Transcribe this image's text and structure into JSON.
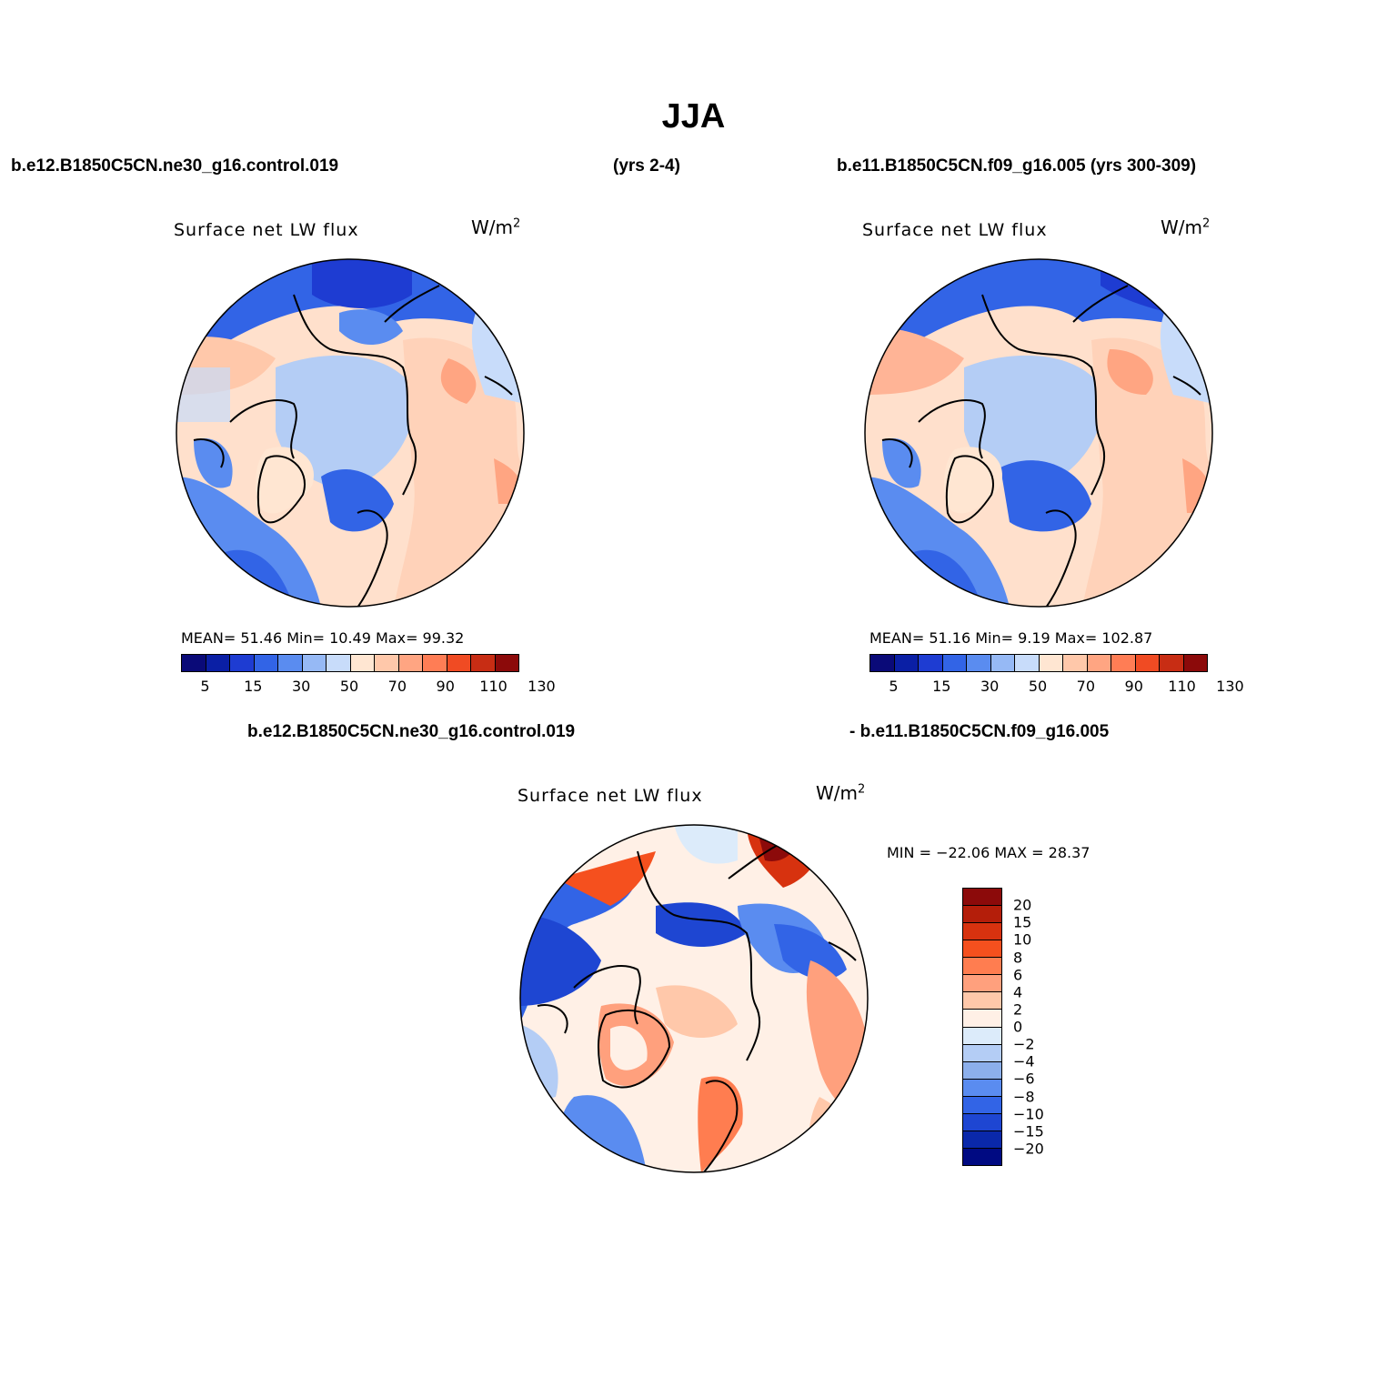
{
  "title": "JJA",
  "header": {
    "left_case": "b.e12.B1850C5CN.ne30_g16.control.019",
    "left_years": "(yrs 2-4)",
    "right_case": "b.e11.B1850C5CN.f09_g16.005 (yrs 300-309)"
  },
  "panels": [
    {
      "label": "Surface net LW flux",
      "units": "W/m",
      "units_sup": "2",
      "stats": "MEAN=   51.46   Min=    10.49    Max=    99.32",
      "colorbar_ticks": [
        "5",
        "15",
        "30",
        "50",
        "70",
        "90",
        "110",
        "130"
      ]
    },
    {
      "label": "Surface net LW flux",
      "units": "W/m",
      "units_sup": "2",
      "stats": "MEAN=   51.16   Min=     9.19   Max= 102.87",
      "colorbar_ticks": [
        "5",
        "15",
        "30",
        "50",
        "70",
        "90",
        "110",
        "130"
      ]
    }
  ],
  "difference": {
    "title_left": "b.e12.B1850C5CN.ne30_g16.control.019",
    "title_right": "- b.e11.B1850C5CN.f09_g16.005",
    "label": "Surface net LW flux",
    "units": "W/m",
    "units_sup": "2",
    "minmax": "MIN = −22.06  MAX =    28.37",
    "colorbar_ticks": [
      "20",
      "15",
      "10",
      "8",
      "6",
      "4",
      "2",
      "0",
      "−2",
      "−4",
      "−6",
      "−8",
      "−10",
      "−15",
      "−20"
    ]
  },
  "colors": {
    "top_palette": [
      "#0a0a78",
      "#0a1fa5",
      "#1e3cd2",
      "#3264e6",
      "#5a8cf0",
      "#96b9f5",
      "#c8dcfa",
      "#ffe6d2",
      "#ffc8aa",
      "#ffa582",
      "#ff7d55",
      "#f04b23",
      "#c82d14",
      "#8c0a0a"
    ],
    "diff_palette": [
      "#8c0a0a",
      "#b41e0a",
      "#d7320f",
      "#f5501e",
      "#ff7d50",
      "#ffa07d",
      "#ffc8aa",
      "#fff0e6",
      "#dcebfa",
      "#b4cdf5",
      "#8cafeb",
      "#5a8cf0",
      "#3264e6",
      "#1e46d2",
      "#0a28aa",
      "#000a82"
    ]
  }
}
